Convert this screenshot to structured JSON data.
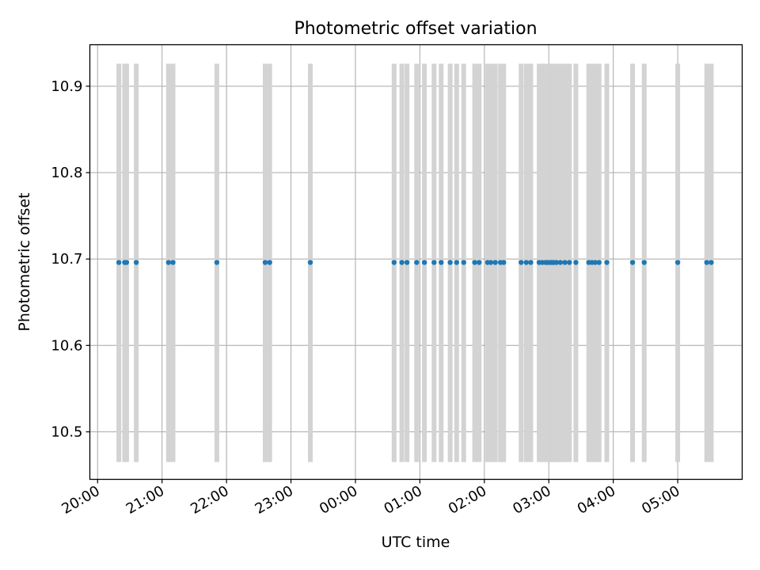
{
  "chart_data": {
    "type": "scatter",
    "title": "Photometric offset variation",
    "xlabel": "UTC time",
    "ylabel": "Photometric offset",
    "x_tick_labels": [
      "20:00",
      "21:00",
      "22:00",
      "23:00",
      "00:00",
      "01:00",
      "02:00",
      "03:00",
      "04:00",
      "05:00"
    ],
    "y_tick_labels": [
      "10.5",
      "10.6",
      "10.7",
      "10.8",
      "10.9"
    ],
    "y_ticks": [
      10.5,
      10.6,
      10.7,
      10.8,
      10.9
    ],
    "x_tick_hours": [
      20,
      21,
      22,
      23,
      24,
      25,
      26,
      27,
      28,
      29
    ],
    "xlim_hours": [
      19.88,
      30.0
    ],
    "ylim": [
      10.445,
      10.948
    ],
    "grid": true,
    "point_color": "#1f77b4",
    "error_bar_color": "#d3d3d3",
    "error_bar_range": [
      10.465,
      10.926
    ],
    "y_value": 10.696,
    "x_hours": [
      20.33,
      20.42,
      20.45,
      20.6,
      21.1,
      21.17,
      21.85,
      22.6,
      22.67,
      23.3,
      24.6,
      24.72,
      24.8,
      24.95,
      25.07,
      25.22,
      25.33,
      25.47,
      25.57,
      25.68,
      25.85,
      25.92,
      26.05,
      26.1,
      26.17,
      26.25,
      26.3,
      26.57,
      26.65,
      26.72,
      26.85,
      26.9,
      26.95,
      26.98,
      27.02,
      27.05,
      27.08,
      27.12,
      27.18,
      27.25,
      27.32,
      27.42,
      27.62,
      27.67,
      27.72,
      27.78,
      27.9,
      28.3,
      28.48,
      29.0,
      29.45,
      29.52
    ]
  }
}
